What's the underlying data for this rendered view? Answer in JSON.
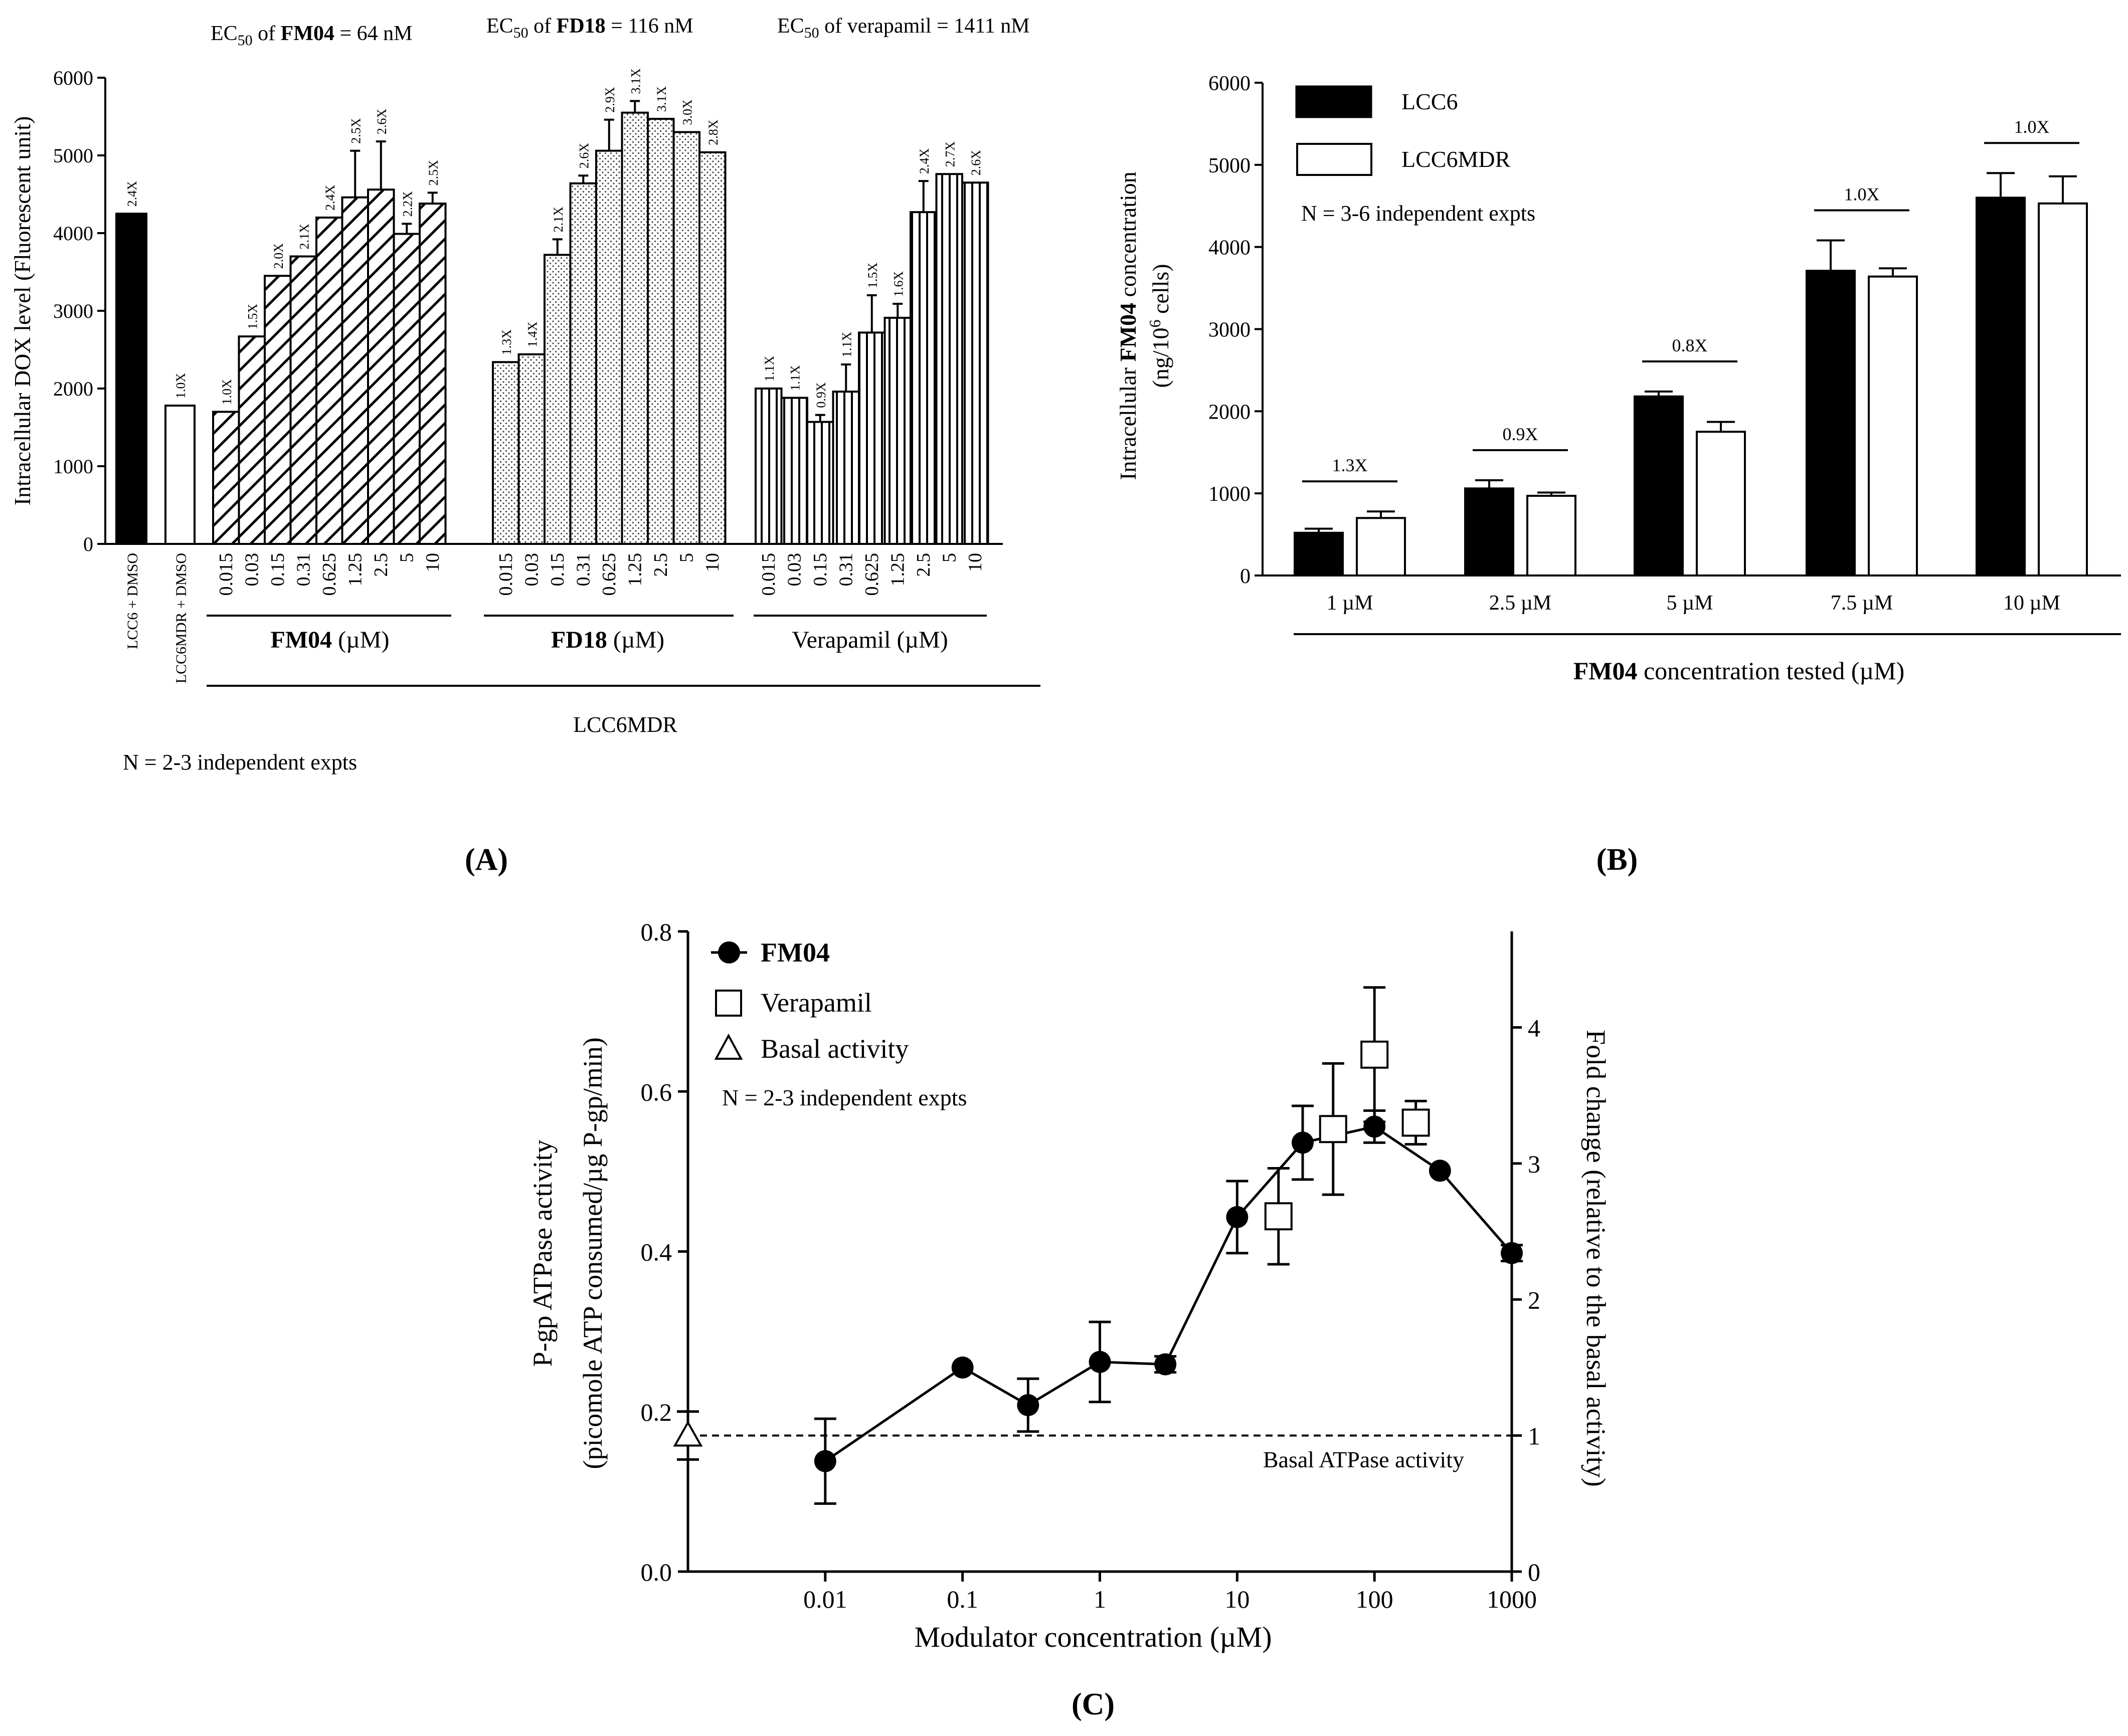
{
  "chart_data": [
    {
      "panel": "A",
      "type": "bar",
      "panel_label": "(A)",
      "ylabel": "Intracellular DOX level (Fluorescent unit)",
      "ylim": [
        0,
        6000
      ],
      "yticks": [
        0,
        1000,
        2000,
        3000,
        4000,
        5000,
        6000
      ],
      "ytick_labels": [
        "0",
        "1000",
        "2000",
        "3000",
        "4000",
        "5000",
        "6000"
      ],
      "ec50": [
        {
          "pre": "EC",
          "sub": "50",
          "mid": " of ",
          "bold": "FM04",
          "post": " = 64 nM"
        },
        {
          "pre": "EC",
          "sub": "50",
          "mid": " of ",
          "bold": "FD18",
          "post": " = 116 nM"
        },
        {
          "pre": "EC",
          "sub": "50",
          "mid": " of verapamil = 1411 nM",
          "bold": "",
          "post": ""
        }
      ],
      "controls": [
        {
          "label": "LCC6 + DMSO",
          "value": 4250,
          "fold": "2.4X",
          "fill": "black"
        },
        {
          "label": "LCC6MDR + DMSO",
          "value": 1780,
          "fold": "1.0X",
          "fill": "white"
        }
      ],
      "groups": [
        {
          "name": "FM04",
          "unit": " (µM)",
          "pattern": "diag",
          "categories": [
            "0.015",
            "0.03",
            "0.15",
            "0.31",
            "0.625",
            "1.25",
            "2.5",
            "5",
            "10"
          ],
          "values": [
            1700,
            2670,
            3450,
            3700,
            4200,
            4460,
            4560,
            3990,
            4380
          ],
          "errors": [
            0,
            0,
            0,
            0,
            0,
            600,
            620,
            130,
            140
          ],
          "folds": [
            "1.0X",
            "1.5X",
            "2.0X",
            "2.1X",
            "2.4X",
            "2.5X",
            "2.6X",
            "2.2X",
            "2.5X"
          ]
        },
        {
          "name": "FD18",
          "unit": " (µM)",
          "pattern": "dots",
          "categories": [
            "0.015",
            "0.03",
            "0.15",
            "0.31",
            "0.625",
            "1.25",
            "2.5",
            "5",
            "10"
          ],
          "values": [
            2340,
            2440,
            3720,
            4640,
            5060,
            5550,
            5470,
            5300,
            5040
          ],
          "errors": [
            0,
            0,
            200,
            100,
            400,
            150,
            0,
            0,
            0
          ],
          "folds": [
            "1.3X",
            "1.4X",
            "2.1X",
            "2.6X",
            "2.9X",
            "3.1X",
            "3.1X",
            "3.0X",
            "2.8X"
          ]
        },
        {
          "name": "Verapamil",
          "unit": " (µM)",
          "pattern": "vlines",
          "categories": [
            "0.015",
            "0.03",
            "0.15",
            "0.31",
            "0.625",
            "1.25",
            "2.5",
            "5",
            "10"
          ],
          "values": [
            2000,
            1880,
            1570,
            1960,
            2720,
            2910,
            4270,
            4760,
            4650
          ],
          "errors": [
            0,
            0,
            90,
            350,
            480,
            180,
            400,
            0,
            0
          ],
          "folds": [
            "1.1X",
            "1.1X",
            "0.9X",
            "1.1X",
            "1.5X",
            "1.6X",
            "2.4X",
            "2.7X",
            "2.6X"
          ]
        }
      ],
      "group_caption": "LCC6MDR",
      "note": "N = 2-3 independent expts"
    },
    {
      "panel": "B",
      "type": "bar",
      "panel_label": "(B)",
      "ylabel_pre": "Intracellular ",
      "ylabel_bold": "FM04",
      "ylabel_post": " concentration",
      "ylabel2_pre": "(ng/10",
      "ylabel2_sup": "6",
      "ylabel2_post": " cells)",
      "ylim": [
        0,
        6000
      ],
      "yticks": [
        0,
        1000,
        2000,
        3000,
        4000,
        5000,
        6000
      ],
      "ytick_labels": [
        "0",
        "1000",
        "2000",
        "3000",
        "4000",
        "5000",
        "6000"
      ],
      "categories": [
        "1 µM",
        "2.5 µM",
        "5 µM",
        "7.5 µM",
        "10 µM"
      ],
      "series": [
        {
          "name": "LCC6",
          "values": [
            520,
            1060,
            2180,
            3710,
            4600
          ],
          "errors": [
            50,
            100,
            60,
            370,
            300
          ],
          "fill": "black"
        },
        {
          "name": "LCC6MDR",
          "values": [
            700,
            970,
            1750,
            3640,
            4530
          ],
          "errors": [
            80,
            40,
            120,
            100,
            330
          ],
          "fill": "white"
        }
      ],
      "folds": [
        "1.3X",
        "0.9X",
        "0.8X",
        "1.0X",
        "1.0X"
      ],
      "xlabel_bold": "FM04",
      "xlabel_post": " concentration tested (µM)",
      "note": "N = 3-6 independent expts"
    },
    {
      "panel": "C",
      "type": "scatter",
      "panel_label": "(C)",
      "ylabel": "P-gp ATPase activity",
      "ylabel2": "(picomole ATP consumed/µg P-gp/min)",
      "y2label": "Fold change (relative to the basal activity)",
      "xlabel": "Modulator concentration (µM)",
      "xscale": "log",
      "xlim": [
        0.001,
        1000
      ],
      "xticks": [
        0.01,
        0.1,
        1,
        10,
        100,
        1000
      ],
      "xtick_labels": [
        "0.01",
        "0.1",
        "1",
        "10",
        "100",
        "1000"
      ],
      "ylim": [
        0,
        0.8
      ],
      "yticks": [
        0,
        0.2,
        0.4,
        0.6,
        0.8
      ],
      "ytick_labels": [
        "0.0",
        "0.2",
        "0.4",
        "0.6",
        "0.8"
      ],
      "y2ticks": [
        0,
        1,
        2,
        3,
        4
      ],
      "y2tick_labels": [
        "0",
        "1",
        "2",
        "3",
        "4"
      ],
      "basal_value": 0.17,
      "basal_label": "Basal ATPase activity",
      "series": [
        {
          "name": "FM04",
          "marker": "circle",
          "line": true,
          "x": [
            0.01,
            0.1,
            0.3,
            1,
            3,
            10,
            30,
            100,
            300,
            1000
          ],
          "y": [
            0.138,
            0.255,
            0.208,
            0.262,
            0.259,
            0.443,
            0.536,
            0.556,
            0.501,
            0.398
          ],
          "err": [
            0.053,
            0,
            0.033,
            0.05,
            0.01,
            0.045,
            0.046,
            0.02,
            0,
            0.01
          ]
        },
        {
          "name": "Verapamil",
          "marker": "square",
          "line": false,
          "x": [
            20,
            50,
            100,
            200
          ],
          "y": [
            0.444,
            0.553,
            0.646,
            0.561
          ],
          "err": [
            0.06,
            0.082,
            0.084,
            0.027
          ]
        },
        {
          "name": "Basal activity",
          "marker": "triangle",
          "line": false,
          "x": [
            0.001
          ],
          "y": [
            0.17
          ],
          "err": [
            0.03
          ]
        }
      ],
      "note": "N = 2-3 independent expts"
    }
  ]
}
